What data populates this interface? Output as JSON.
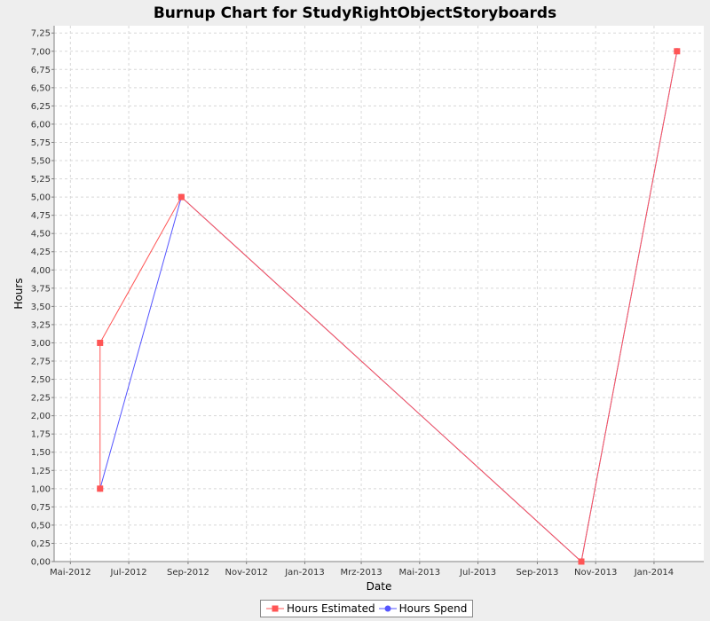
{
  "chart_data": {
    "type": "line",
    "title": "Burnup Chart for StudyRightObjectStoryboards",
    "xlabel": "Date",
    "ylabel": "Hours",
    "x_ticks": [
      "Mai-2012",
      "Jul-2012",
      "Sep-2012",
      "Nov-2012",
      "Jan-2013",
      "Mrz-2013",
      "Mai-2013",
      "Jul-2013",
      "Sep-2013",
      "Nov-2013",
      "Jan-2014"
    ],
    "y_ticks": [
      "0,00",
      "0,25",
      "0,50",
      "0,75",
      "1,00",
      "1,25",
      "1,50",
      "1,75",
      "2,00",
      "2,25",
      "2,50",
      "2,75",
      "3,00",
      "3,25",
      "3,50",
      "3,75",
      "4,00",
      "4,25",
      "4,50",
      "4,75",
      "5,00",
      "5,25",
      "5,50",
      "5,75",
      "6,00",
      "6,25",
      "6,50",
      "6,75",
      "7,00",
      "7,25"
    ],
    "ylim": [
      0,
      7.35
    ],
    "xlim": [
      "2012-04-14",
      "2014-02-22"
    ],
    "grid": true,
    "legend_position": "bottom",
    "series": [
      {
        "name": "Hours Estimated",
        "color": "#ff5555",
        "marker": "square",
        "points": [
          {
            "x": "2012-06-01",
            "y": 1.0
          },
          {
            "x": "2012-06-01",
            "y": 3.0
          },
          {
            "x": "2012-08-25",
            "y": 5.0
          },
          {
            "x": "2013-10-17",
            "y": 0.0
          },
          {
            "x": "2014-01-25",
            "y": 7.0
          }
        ]
      },
      {
        "name": "Hours Spend",
        "color": "#5555ff",
        "marker": "circle",
        "points": [
          {
            "x": "2012-06-01",
            "y": 1.0
          },
          {
            "x": "2012-08-25",
            "y": 5.0
          },
          {
            "x": "2013-10-17",
            "y": 0.0
          },
          {
            "x": "2014-01-25",
            "y": 7.0
          }
        ]
      }
    ]
  }
}
